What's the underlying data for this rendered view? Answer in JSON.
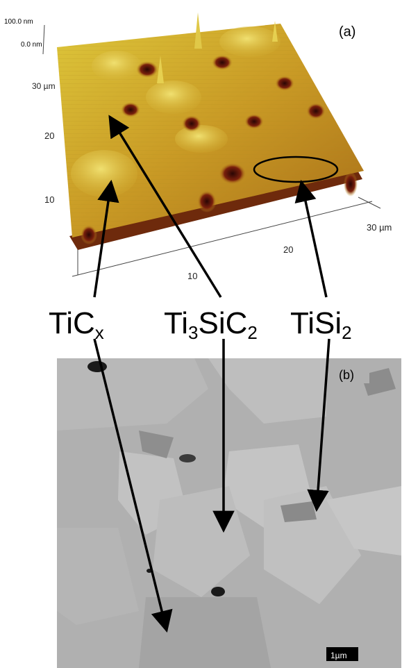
{
  "panel_a": {
    "label": "(a)",
    "z_top_label": "100.0 nm",
    "z_zero_label": "0.0 nm",
    "y_axis_ticks": [
      "30 µm",
      "20",
      "10"
    ],
    "x_axis_ticks": [
      "10",
      "20",
      "30 µm"
    ]
  },
  "phases": {
    "tic": {
      "base": "TiC",
      "sub": "x"
    },
    "ti3sic2": {
      "p1": "Ti",
      "s1": "3",
      "p2": "SiC",
      "s2": "2"
    },
    "tisi2": {
      "base": "TiSi",
      "sub": "2"
    }
  },
  "panel_b": {
    "label": "(b)",
    "scale_bar": "1µm"
  },
  "colors": {
    "surface_high": "#e8d548",
    "surface_mid": "#c89a22",
    "surface_low": "#7a2a0c",
    "pit": "#3a0a05",
    "sem_bg": "#b4b4b4",
    "arrow": "#000000"
  }
}
